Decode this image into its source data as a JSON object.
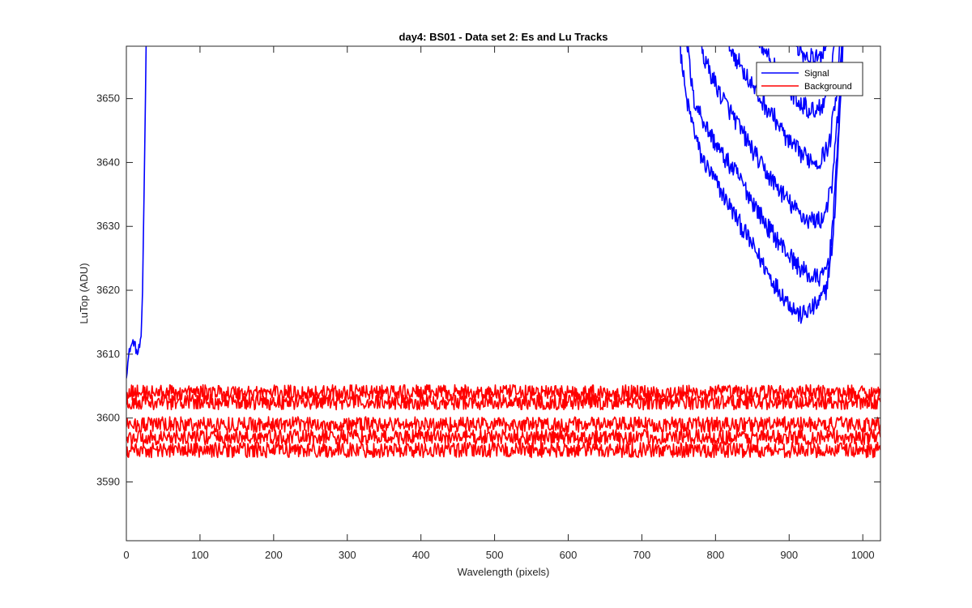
{
  "chart_data": {
    "type": "line",
    "title": "day4: BS01 - Data set 2: Es and Lu Tracks",
    "xlabel": "Wavelength (pixels)",
    "ylabel": "LuTop (ADU)",
    "xlim": [
      0,
      1024
    ],
    "ylim": [
      3580.8,
      3658.2
    ],
    "x_ticks": [
      0,
      100,
      200,
      300,
      400,
      500,
      600,
      700,
      800,
      900,
      1000
    ],
    "y_ticks": [
      3590,
      3600,
      3610,
      3620,
      3630,
      3640,
      3650
    ],
    "grid": false,
    "legend_position": "top-right",
    "legend": [
      {
        "label": "Signal",
        "color": "#0000ff"
      },
      {
        "label": "Background",
        "color": "#ff0000"
      }
    ],
    "series": [
      {
        "name": "Signal",
        "color": "#0000ff",
        "points": [
          [
            0,
            3607
          ],
          [
            5,
            3611
          ],
          [
            10,
            3612
          ],
          [
            15,
            3610
          ],
          [
            20,
            3612
          ],
          [
            22,
            3620
          ],
          [
            24,
            3635
          ],
          [
            26,
            3650
          ],
          [
            28,
            3670
          ]
        ]
      },
      {
        "name": "Signal",
        "color": "#0000ff",
        "points": [
          [
            745,
            3665
          ],
          [
            760,
            3650
          ],
          [
            780,
            3641
          ],
          [
            800,
            3637
          ],
          [
            820,
            3633
          ],
          [
            840,
            3629
          ],
          [
            860,
            3625
          ],
          [
            880,
            3621
          ],
          [
            900,
            3618
          ],
          [
            915,
            3616
          ],
          [
            930,
            3617
          ],
          [
            940,
            3618
          ],
          [
            950,
            3620
          ],
          [
            960,
            3628
          ],
          [
            970,
            3650
          ],
          [
            978,
            3670
          ]
        ]
      },
      {
        "name": "Signal",
        "color": "#0000ff",
        "points": [
          [
            755,
            3665
          ],
          [
            770,
            3650
          ],
          [
            790,
            3645
          ],
          [
            810,
            3641
          ],
          [
            830,
            3638
          ],
          [
            850,
            3634
          ],
          [
            870,
            3630
          ],
          [
            890,
            3627
          ],
          [
            910,
            3624
          ],
          [
            930,
            3622
          ],
          [
            945,
            3622
          ],
          [
            955,
            3625
          ],
          [
            965,
            3640
          ],
          [
            975,
            3670
          ]
        ]
      },
      {
        "name": "Signal",
        "color": "#0000ff",
        "points": [
          [
            770,
            3665
          ],
          [
            785,
            3656
          ],
          [
            805,
            3651
          ],
          [
            825,
            3647
          ],
          [
            845,
            3643
          ],
          [
            865,
            3639
          ],
          [
            885,
            3636
          ],
          [
            905,
            3633
          ],
          [
            925,
            3631
          ],
          [
            945,
            3631
          ],
          [
            958,
            3636
          ],
          [
            968,
            3650
          ],
          [
            978,
            3670
          ]
        ]
      },
      {
        "name": "Signal",
        "color": "#0000ff",
        "points": [
          [
            800,
            3665
          ],
          [
            820,
            3658
          ],
          [
            840,
            3654
          ],
          [
            860,
            3650
          ],
          [
            880,
            3647
          ],
          [
            900,
            3643
          ],
          [
            920,
            3641
          ],
          [
            940,
            3640
          ],
          [
            955,
            3643
          ],
          [
            965,
            3652
          ],
          [
            975,
            3670
          ]
        ]
      },
      {
        "name": "Signal",
        "color": "#0000ff",
        "points": [
          [
            830,
            3665
          ],
          [
            850,
            3661
          ],
          [
            870,
            3657
          ],
          [
            890,
            3653
          ],
          [
            910,
            3650
          ],
          [
            930,
            3648
          ],
          [
            945,
            3649
          ],
          [
            958,
            3655
          ],
          [
            968,
            3670
          ]
        ]
      },
      {
        "name": "Signal",
        "color": "#0000ff",
        "points": [
          [
            880,
            3665
          ],
          [
            900,
            3660
          ],
          [
            920,
            3657
          ],
          [
            940,
            3656
          ],
          [
            955,
            3660
          ],
          [
            965,
            3670
          ]
        ]
      },
      {
        "name": "Background",
        "color": "#ff0000",
        "points": [
          [
            0,
            3604
          ],
          [
            256,
            3604
          ],
          [
            512,
            3604
          ],
          [
            768,
            3604
          ],
          [
            1024,
            3604
          ]
        ]
      },
      {
        "name": "Background",
        "color": "#ff0000",
        "points": [
          [
            0,
            3602.5
          ],
          [
            256,
            3602.5
          ],
          [
            512,
            3602.5
          ],
          [
            768,
            3602.5
          ],
          [
            1024,
            3602.5
          ]
        ]
      },
      {
        "name": "Background",
        "color": "#ff0000",
        "points": [
          [
            0,
            3599
          ],
          [
            256,
            3599
          ],
          [
            512,
            3599
          ],
          [
            768,
            3599
          ],
          [
            1024,
            3599
          ]
        ]
      },
      {
        "name": "Background",
        "color": "#ff0000",
        "points": [
          [
            0,
            3597
          ],
          [
            256,
            3597
          ],
          [
            512,
            3597
          ],
          [
            768,
            3597
          ],
          [
            1024,
            3597
          ]
        ]
      },
      {
        "name": "Background",
        "color": "#ff0000",
        "points": [
          [
            0,
            3595
          ],
          [
            256,
            3595
          ],
          [
            512,
            3595
          ],
          [
            768,
            3595
          ],
          [
            1024,
            3595
          ]
        ]
      }
    ],
    "series_noise_amplitude": [
      0.8,
      1.5,
      1.5,
      1.5,
      1.5,
      1.5,
      1.5,
      1.2,
      1.2,
      1.2,
      1.2,
      1.2
    ]
  }
}
